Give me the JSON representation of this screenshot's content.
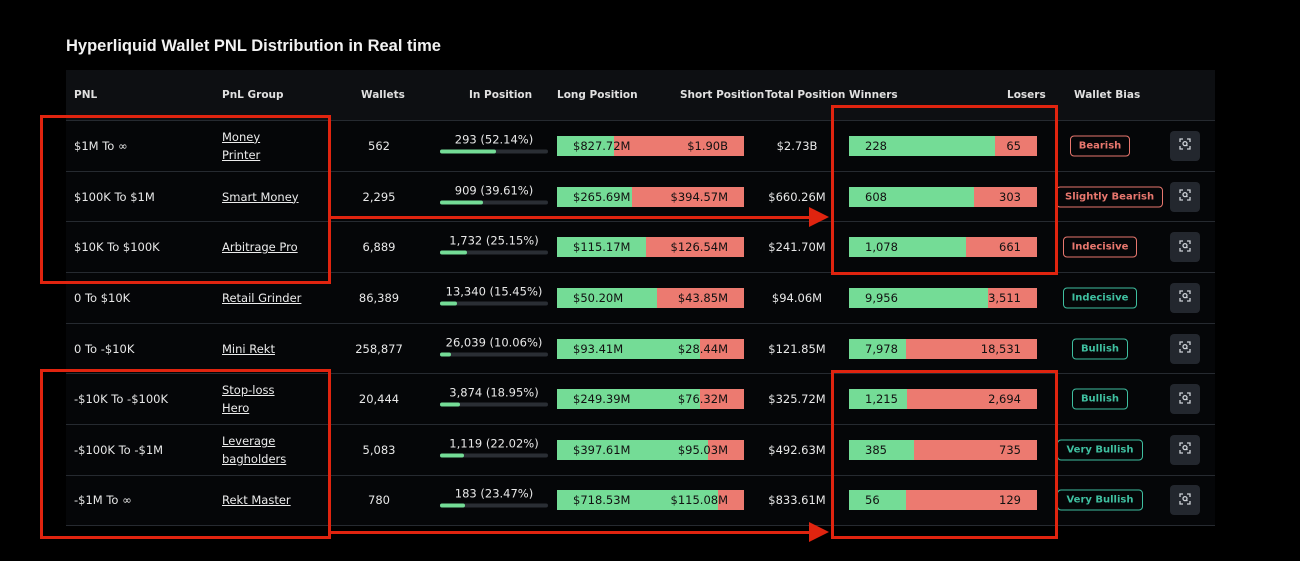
{
  "title": "Hyperliquid Wallet PNL Distribution in Real time",
  "columns": {
    "pnl": "PNL",
    "group": "PnL Group",
    "wallets": "Wallets",
    "in_position": "In Position",
    "long": "Long Position",
    "short": "Short Position",
    "total": "Total Position",
    "winners": "Winners",
    "losers": "Losers",
    "bias": "Wallet Bias"
  },
  "colors": {
    "green": "#74dc96",
    "red": "#ec7a70",
    "bearish": "#e8776e",
    "bullish": "#3fbfa0",
    "annotation": "#e0240f"
  },
  "rows": [
    {
      "pnl": "$1M To ∞",
      "group": "Money Printer",
      "wallets": "562",
      "in_position": "293 (52.14%)",
      "in_pct": 52.14,
      "long": "$827.72M",
      "short": "$1.90B",
      "long_v": 827.72,
      "short_v": 1900,
      "total": "$2.73B",
      "winners": "228",
      "losers": "65",
      "bias": "Bearish",
      "bias_tone": "bearish"
    },
    {
      "pnl": "$100K To $1M",
      "group": "Smart Money",
      "wallets": "2,295",
      "in_position": "909 (39.61%)",
      "in_pct": 39.61,
      "long": "$265.69M",
      "short": "$394.57M",
      "long_v": 265.69,
      "short_v": 394.57,
      "total": "$660.26M",
      "winners": "608",
      "losers": "303",
      "bias": "Slightly Bearish",
      "bias_tone": "bearish"
    },
    {
      "pnl": "$10K To $100K",
      "group": "Arbitrage Pro",
      "wallets": "6,889",
      "in_position": "1,732 (25.15%)",
      "in_pct": 25.15,
      "long": "$115.17M",
      "short": "$126.54M",
      "long_v": 115.17,
      "short_v": 126.54,
      "total": "$241.70M",
      "winners": "1,078",
      "losers": "661",
      "bias": "Indecisive",
      "bias_tone": "bearish"
    },
    {
      "pnl": "0 To $10K",
      "group": "Retail Grinder",
      "wallets": "86,389",
      "in_position": "13,340 (15.45%)",
      "in_pct": 15.45,
      "long": "$50.20M",
      "short": "$43.85M",
      "long_v": 50.2,
      "short_v": 43.85,
      "total": "$94.06M",
      "winners": "9,956",
      "losers": "3,511",
      "bias": "Indecisive",
      "bias_tone": "bullish"
    },
    {
      "pnl": "0 To -$10K",
      "group": "Mini Rekt",
      "wallets": "258,877",
      "in_position": "26,039 (10.06%)",
      "in_pct": 10.06,
      "long": "$93.41M",
      "short": "$28.44M",
      "long_v": 93.41,
      "short_v": 28.44,
      "total": "$121.85M",
      "winners": "7,978",
      "losers": "18,531",
      "bias": "Bullish",
      "bias_tone": "bullish"
    },
    {
      "pnl": "-$10K To -$100K",
      "group": "Stop-loss Hero",
      "wallets": "20,444",
      "in_position": "3,874 (18.95%)",
      "in_pct": 18.95,
      "long": "$249.39M",
      "short": "$76.32M",
      "long_v": 249.39,
      "short_v": 76.32,
      "total": "$325.72M",
      "winners": "1,215",
      "losers": "2,694",
      "bias": "Bullish",
      "bias_tone": "bullish"
    },
    {
      "pnl": "-$100K To -$1M",
      "group": "Leverage bagholders",
      "wallets": "5,083",
      "in_position": "1,119 (22.02%)",
      "in_pct": 22.02,
      "long": "$397.61M",
      "short": "$95.03M",
      "long_v": 397.61,
      "short_v": 95.03,
      "total": "$492.63M",
      "winners": "385",
      "losers": "735",
      "bias": "Very Bullish",
      "bias_tone": "bullish"
    },
    {
      "pnl": "-$1M To ∞",
      "group": "Rekt Master",
      "wallets": "780",
      "in_position": "183 (23.47%)",
      "in_pct": 23.47,
      "long": "$718.53M",
      "short": "$115.08M",
      "long_v": 718.53,
      "short_v": 115.08,
      "total": "$833.61M",
      "winners": "56",
      "losers": "129",
      "bias": "Very Bullish",
      "bias_tone": "bullish"
    }
  ]
}
